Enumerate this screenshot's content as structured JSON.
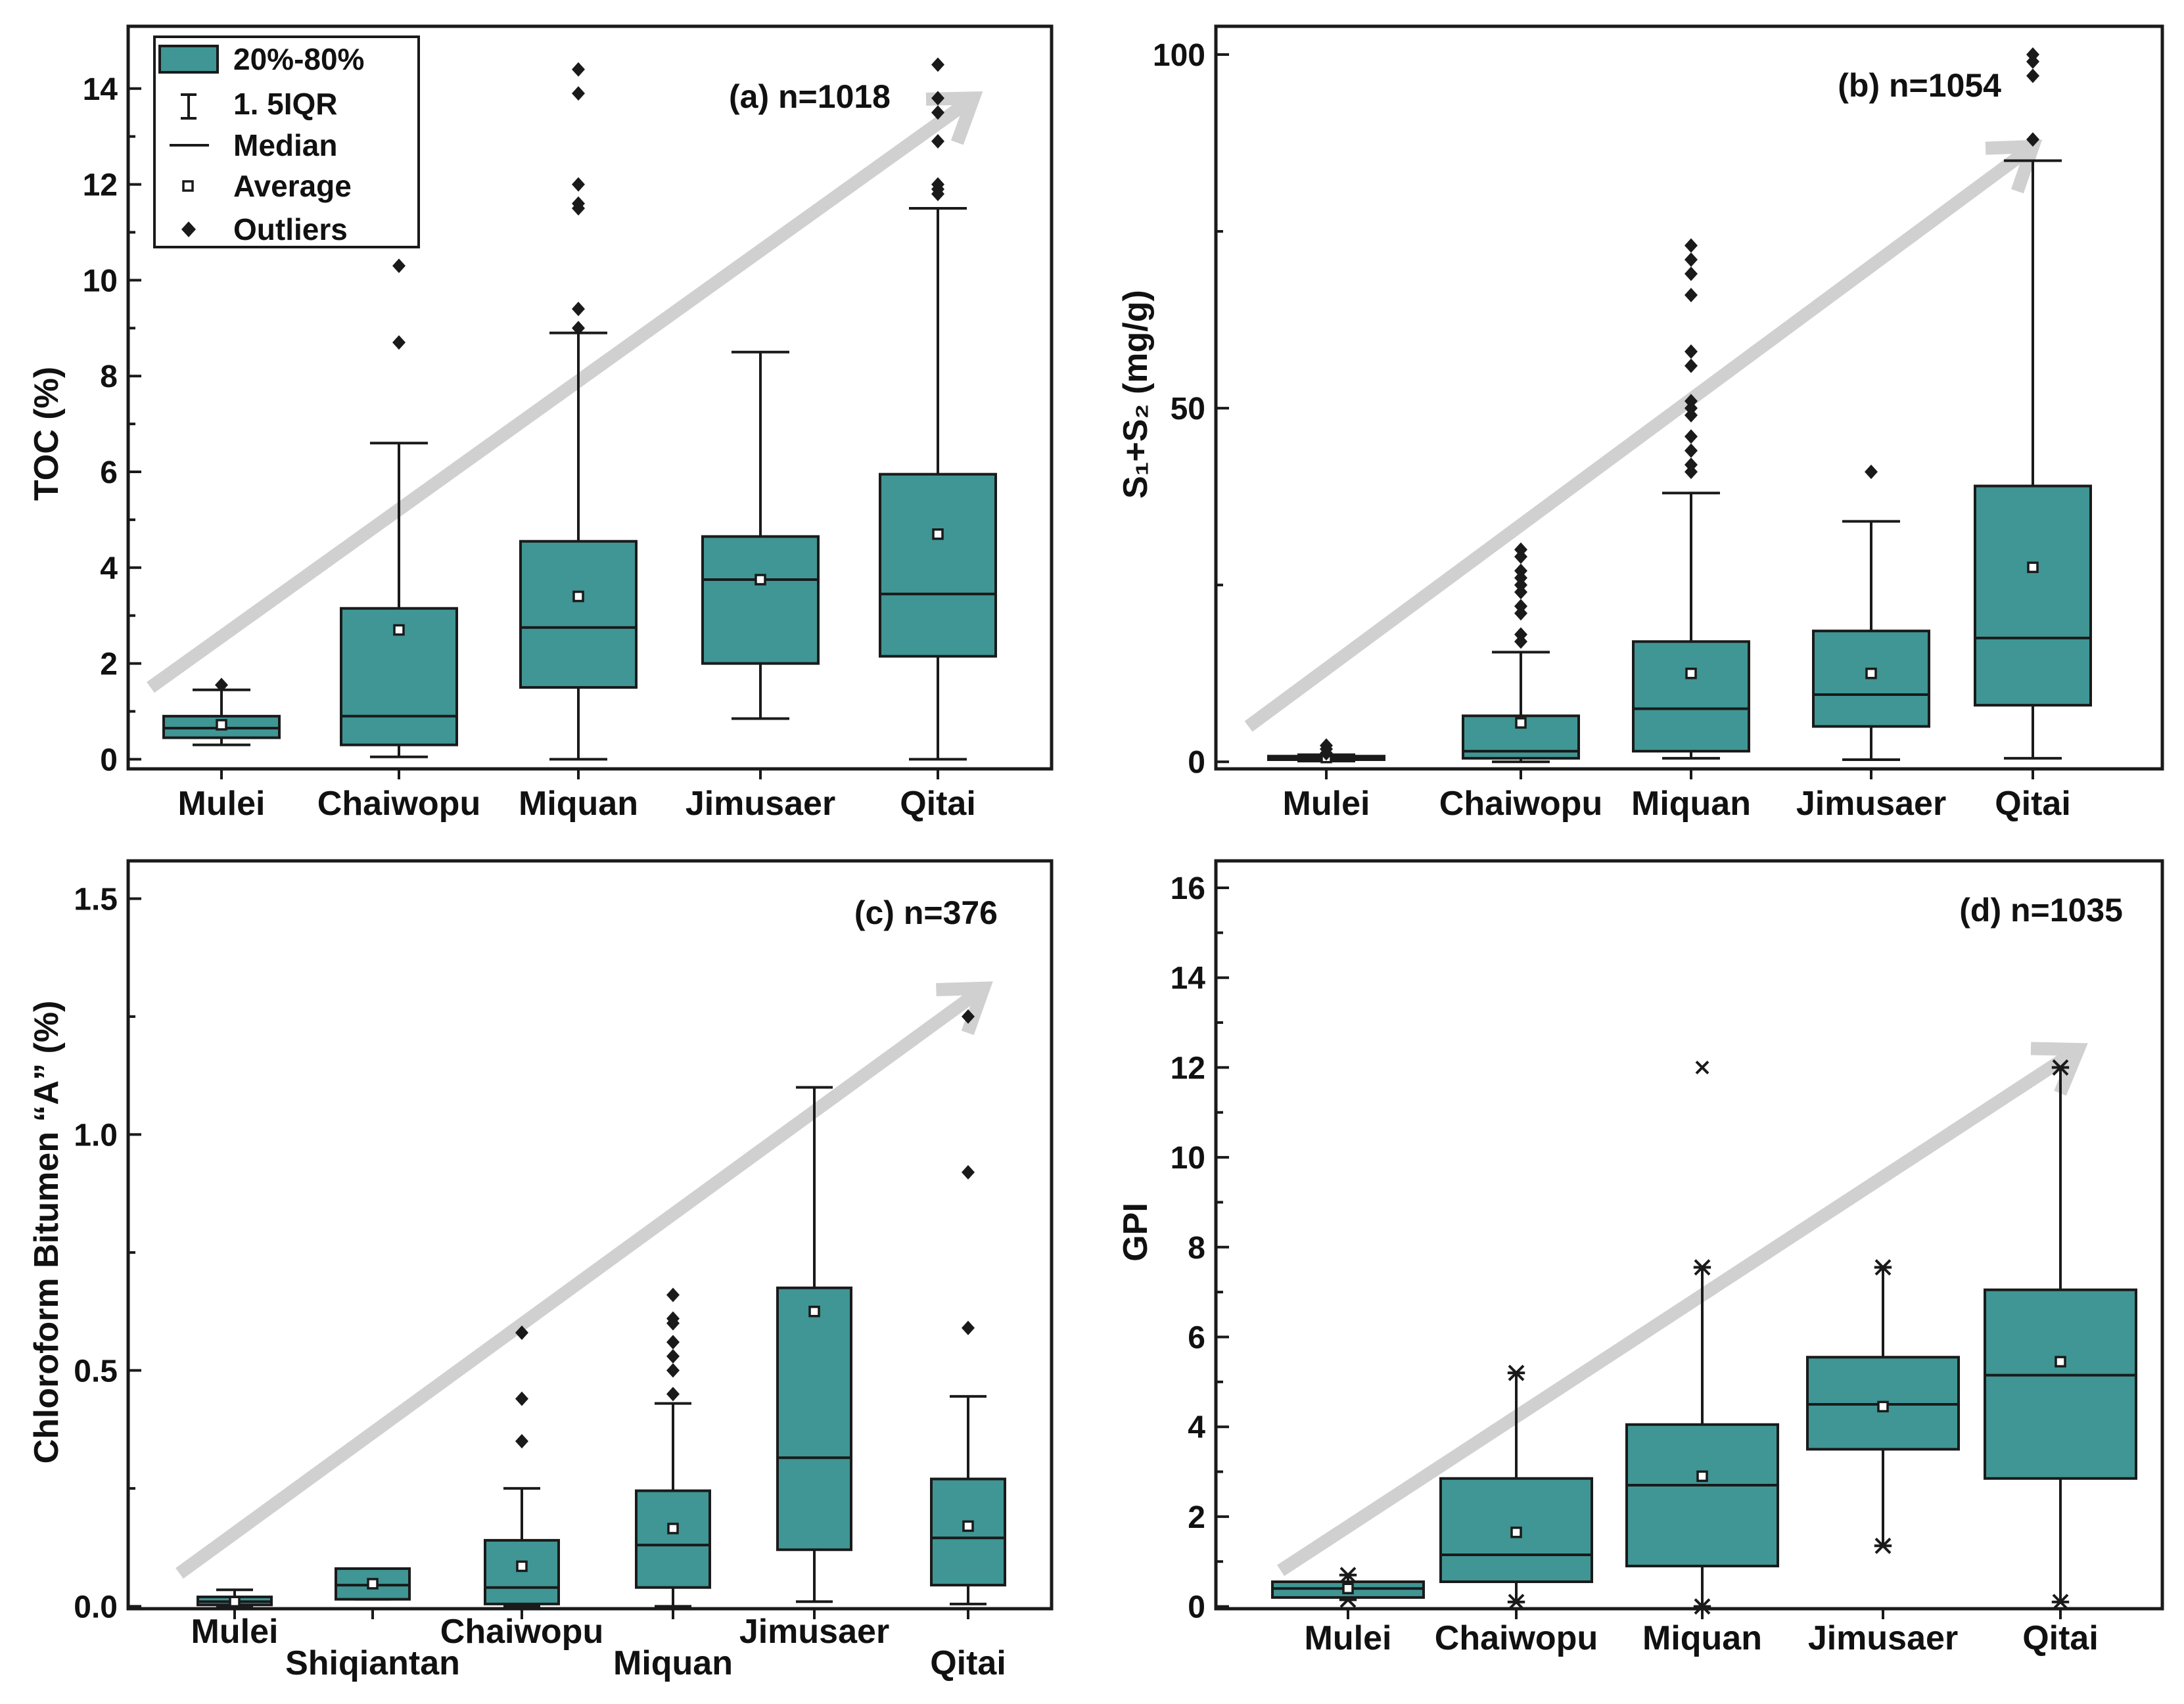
{
  "colors": {
    "box_fill": "#3f9694",
    "box_stroke": "#1a1a1a",
    "arrow": "#d0d0d0",
    "axis": "#1a1a1a"
  },
  "legend": {
    "items": [
      {
        "label": "20%-80%",
        "symbol": "box-swatch-icon"
      },
      {
        "label": "1. 5IQR",
        "symbol": "whisker-icon"
      },
      {
        "label": "Median",
        "symbol": "median-line-icon"
      },
      {
        "label": "Average",
        "symbol": "square-marker-icon"
      },
      {
        "label": "Outliers",
        "symbol": "diamond-marker-icon"
      }
    ]
  },
  "chart_data": [
    {
      "id": "a",
      "type": "box",
      "title": "(a) n=1018",
      "xlabel": "",
      "ylabel": "TOC (%)",
      "ylim": [
        -0.2,
        15.3
      ],
      "yticks": [
        0,
        2,
        4,
        6,
        8,
        10,
        12,
        14
      ],
      "tick_labels": [
        "0",
        "2",
        "4",
        "6",
        "8",
        "10",
        "12",
        "14"
      ],
      "categories": [
        "Mulei",
        "Chaiwopu",
        "Miquan",
        "Jimusaer",
        "Qitai"
      ],
      "stats": [
        {
          "q20": 0.45,
          "q80": 0.9,
          "median": 0.65,
          "mean": 0.72,
          "wlow": 0.3,
          "whigh": 1.45
        },
        {
          "q20": 0.3,
          "q80": 3.15,
          "median": 0.9,
          "mean": 2.7,
          "wlow": 0.05,
          "whigh": 6.6
        },
        {
          "q20": 1.5,
          "q80": 4.55,
          "median": 2.75,
          "mean": 3.4,
          "wlow": 0.0,
          "whigh": 8.9
        },
        {
          "q20": 2.0,
          "q80": 4.65,
          "median": 3.75,
          "mean": 3.75,
          "wlow": 0.85,
          "whigh": 8.5
        },
        {
          "q20": 2.15,
          "q80": 5.95,
          "median": 3.45,
          "mean": 4.7,
          "wlow": 0.0,
          "whigh": 11.5
        }
      ],
      "outliers": [
        [
          1.55
        ],
        [
          8.7,
          10.3
        ],
        [
          9.0,
          9.4,
          11.5,
          11.6,
          12.0,
          13.9,
          14.4
        ],
        [],
        [
          11.8,
          11.9,
          12.0,
          12.9,
          13.5,
          13.8,
          14.5
        ]
      ],
      "trend_arrow": {
        "from": [
          0.6,
          1.5
        ],
        "to": [
          5.2,
          13.8
        ]
      }
    },
    {
      "id": "b",
      "type": "box",
      "title": "(b) n=1054",
      "xlabel": "",
      "ylabel": "S₁+S₂ (mg/g)",
      "ylim": [
        -1,
        104
      ],
      "yticks": [
        0,
        50,
        100
      ],
      "tick_labels": [
        "0",
        "50",
        "100"
      ],
      "categories": [
        "Mulei",
        "Chaiwopu",
        "Miquan",
        "Jimusaer",
        "Qitai"
      ],
      "stats": [
        {
          "q20": 0.3,
          "q80": 0.8,
          "median": 0.5,
          "mean": 0.6,
          "wlow": 0.1,
          "whigh": 1.0
        },
        {
          "q20": 0.5,
          "q80": 6.5,
          "median": 1.5,
          "mean": 5.5,
          "wlow": 0.0,
          "whigh": 15.5
        },
        {
          "q20": 1.5,
          "q80": 17.0,
          "median": 7.5,
          "mean": 12.5,
          "wlow": 0.5,
          "whigh": 38.0
        },
        {
          "q20": 5.0,
          "q80": 18.5,
          "median": 9.5,
          "mean": 12.5,
          "wlow": 0.3,
          "whigh": 34.0
        },
        {
          "q20": 8.0,
          "q80": 39.0,
          "median": 17.5,
          "mean": 27.5,
          "wlow": 0.5,
          "whigh": 85.0
        }
      ],
      "outliers": [
        [
          1.2,
          1.8,
          2.3
        ],
        [
          17.0,
          18.0,
          21.0,
          22.0,
          24.0,
          25.0,
          26.0,
          27.0,
          29.0,
          30.0
        ],
        [
          41.0,
          42.0,
          44.0,
          46.0,
          49.0,
          50.0,
          51.0,
          56.0,
          58.0,
          66.0,
          69.0,
          71.0,
          73.0
        ],
        [
          41.0
        ],
        [
          88.0,
          97.0,
          99.0,
          100.0
        ]
      ],
      "trend_arrow": {
        "from": [
          0.6,
          5.0
        ],
        "to": [
          5.0,
          87.0
        ]
      }
    },
    {
      "id": "c",
      "type": "box",
      "title": "(c) n=376",
      "xlabel": "",
      "ylabel": "Chloroform Bitumen “A” (%)",
      "ylim": [
        -0.005,
        1.58
      ],
      "yticks": [
        0.0,
        0.5,
        1.0,
        1.5
      ],
      "tick_labels": [
        "0.0",
        "0.5",
        "1.0",
        "1.5"
      ],
      "categories": [
        "Mulei",
        "Shiqiantan",
        "Chaiwopu",
        "Miquan",
        "Jimusaer",
        "Qitai"
      ],
      "stats": [
        {
          "q20": 0.003,
          "q80": 0.02,
          "median": 0.01,
          "mean": 0.01,
          "wlow": 0.0,
          "whigh": 0.035
        },
        {
          "q20": 0.015,
          "q80": 0.08,
          "median": 0.045,
          "mean": 0.048,
          "wlow": 0.015,
          "whigh": 0.08
        },
        {
          "q20": 0.005,
          "q80": 0.14,
          "median": 0.04,
          "mean": 0.085,
          "wlow": 0.0,
          "whigh": 0.25
        },
        {
          "q20": 0.04,
          "q80": 0.245,
          "median": 0.13,
          "mean": 0.165,
          "wlow": 0.0,
          "whigh": 0.43
        },
        {
          "q20": 0.12,
          "q80": 0.675,
          "median": 0.315,
          "mean": 0.625,
          "wlow": 0.01,
          "whigh": 1.1
        },
        {
          "q20": 0.045,
          "q80": 0.27,
          "median": 0.145,
          "mean": 0.17,
          "wlow": 0.005,
          "whigh": 0.445
        }
      ],
      "outliers": [
        [],
        [],
        [
          0.35,
          0.44,
          0.58
        ],
        [
          0.45,
          0.5,
          0.53,
          0.56,
          0.6,
          0.61,
          0.66
        ],
        [],
        [
          0.59,
          0.92,
          1.25
        ]
      ],
      "trend_arrow": {
        "from": [
          0.6,
          0.07
        ],
        "to": [
          6.1,
          1.31
        ]
      }
    },
    {
      "id": "d",
      "type": "box",
      "title": "(d) n=1035",
      "xlabel": "",
      "ylabel": "GPI",
      "ylim": [
        -0.05,
        16.6
      ],
      "yticks": [
        0,
        2,
        4,
        6,
        8,
        10,
        12,
        14,
        16
      ],
      "tick_labels": [
        "0",
        "2",
        "4",
        "6",
        "8",
        "10",
        "12",
        "14",
        "16"
      ],
      "categories": [
        "Mulei",
        "Chaiwopu",
        "Miquan",
        "Jimusaer",
        "Qitai"
      ],
      "stats": [
        {
          "q20": 0.2,
          "q80": 0.55,
          "median": 0.4,
          "mean": 0.4,
          "wlow": 0.15,
          "whigh": 0.7
        },
        {
          "q20": 0.55,
          "q80": 2.85,
          "median": 1.15,
          "mean": 1.65,
          "wlow": 0.1,
          "whigh": 5.2
        },
        {
          "q20": 0.9,
          "q80": 4.05,
          "median": 2.7,
          "mean": 2.9,
          "wlow": 0.0,
          "whigh": 7.55
        },
        {
          "q20": 3.5,
          "q80": 5.55,
          "median": 4.5,
          "mean": 4.45,
          "wlow": 1.35,
          "whigh": 7.55
        },
        {
          "q20": 2.85,
          "q80": 7.05,
          "median": 5.15,
          "mean": 5.45,
          "wlow": 0.1,
          "whigh": 12.0
        }
      ],
      "outliers": [
        [],
        [],
        [
          12.0
        ],
        [],
        []
      ],
      "trend_arrow": {
        "from": [
          0.6,
          0.8
        ],
        "to": [
          5.1,
          12.4
        ]
      }
    }
  ]
}
